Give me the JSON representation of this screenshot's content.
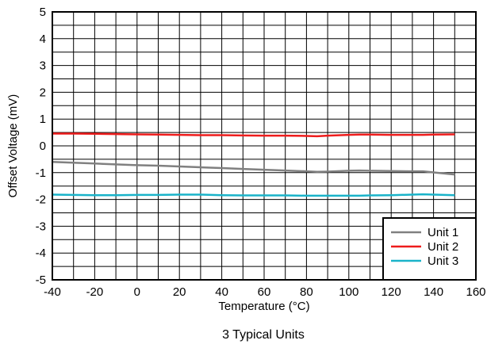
{
  "chart_data": {
    "type": "line",
    "title": "",
    "caption": "3 Typical Units",
    "xlabel": "Temperature (°C)",
    "ylabel": "Offset Voltage (mV)",
    "xlim": [
      -40,
      160
    ],
    "ylim": [
      -5,
      5
    ],
    "xticks": [
      -40,
      -20,
      0,
      20,
      40,
      60,
      80,
      100,
      120,
      140,
      160
    ],
    "yticks": [
      5,
      4,
      3,
      2,
      1,
      0,
      -1,
      -2,
      -3,
      -4,
      -5
    ],
    "x_minor_step": 10,
    "y_minor_step": 0.5,
    "grid": true,
    "legend_position": "bottom-right",
    "series": [
      {
        "name": "Unit 1",
        "color": "#808080",
        "x": [
          -40,
          -30,
          -20,
          -10,
          0,
          10,
          20,
          30,
          40,
          50,
          60,
          70,
          80,
          85,
          90,
          100,
          105,
          110,
          120,
          130,
          135,
          140,
          150
        ],
        "y": [
          -0.6,
          -0.63,
          -0.66,
          -0.69,
          -0.72,
          -0.74,
          -0.77,
          -0.8,
          -0.83,
          -0.86,
          -0.89,
          -0.92,
          -0.95,
          -0.97,
          -0.96,
          -0.93,
          -0.92,
          -0.93,
          -0.94,
          -0.95,
          -0.95,
          -0.99,
          -1.07
        ]
      },
      {
        "name": "Unit 2",
        "color": "#ee1c1c",
        "x": [
          -40,
          -30,
          -20,
          -10,
          0,
          10,
          20,
          30,
          40,
          50,
          60,
          70,
          80,
          85,
          90,
          100,
          105,
          110,
          120,
          130,
          135,
          140,
          150
        ],
        "y": [
          0.46,
          0.46,
          0.45,
          0.44,
          0.43,
          0.42,
          0.41,
          0.4,
          0.4,
          0.39,
          0.38,
          0.38,
          0.37,
          0.36,
          0.38,
          0.41,
          0.42,
          0.42,
          0.41,
          0.41,
          0.41,
          0.42,
          0.43
        ]
      },
      {
        "name": "Unit 3",
        "color": "#1ab3c9",
        "x": [
          -40,
          -30,
          -20,
          -10,
          0,
          10,
          20,
          30,
          40,
          50,
          60,
          70,
          80,
          85,
          90,
          100,
          105,
          110,
          120,
          130,
          135,
          140,
          150
        ],
        "y": [
          -1.82,
          -1.83,
          -1.84,
          -1.84,
          -1.83,
          -1.83,
          -1.82,
          -1.82,
          -1.84,
          -1.85,
          -1.85,
          -1.85,
          -1.86,
          -1.86,
          -1.86,
          -1.86,
          -1.86,
          -1.85,
          -1.84,
          -1.82,
          -1.81,
          -1.82,
          -1.84
        ]
      }
    ]
  }
}
